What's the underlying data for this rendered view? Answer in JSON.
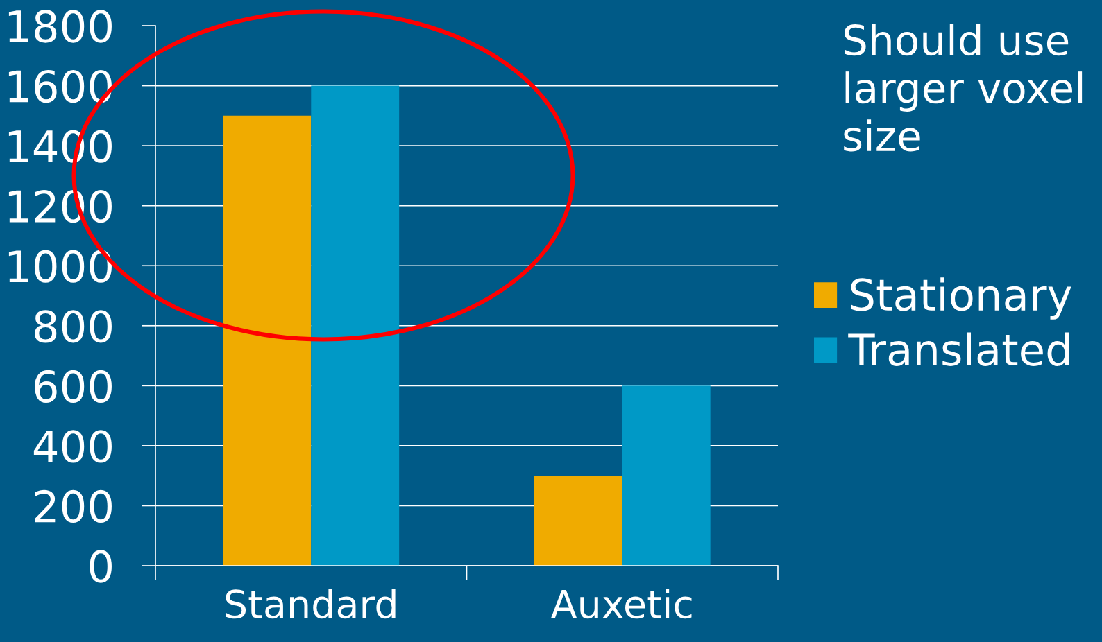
{
  "chart_data": {
    "type": "bar",
    "categories": [
      "Standard",
      "Auxetic"
    ],
    "series": [
      {
        "name": "Stationary",
        "color": "#f0ab00",
        "values": [
          1500,
          300
        ]
      },
      {
        "name": "Translated",
        "color": "#0099c6",
        "values": [
          1600,
          600
        ]
      }
    ],
    "ylim": [
      0,
      1800
    ],
    "yticks": [
      0,
      200,
      400,
      600,
      800,
      1000,
      1200,
      1400,
      1600,
      1800
    ],
    "grid": "y",
    "legend": "right",
    "annotations": [
      "Should use\nlarger voxel\nsize"
    ]
  }
}
